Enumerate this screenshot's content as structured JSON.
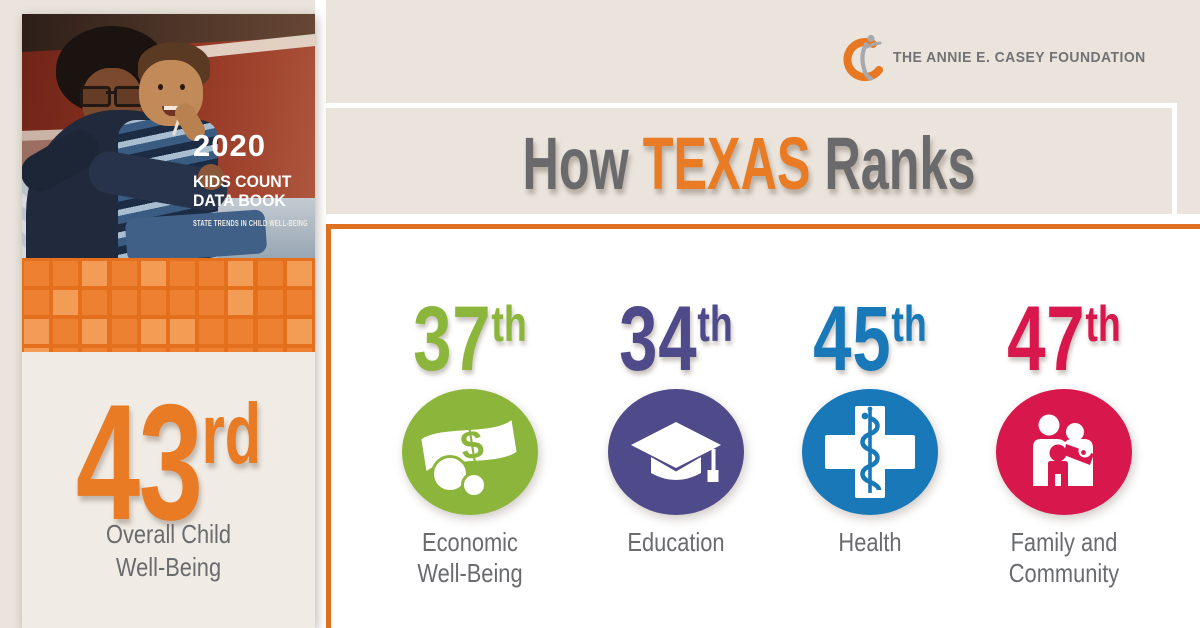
{
  "brand": {
    "name": "THE ANNIE E. CASEY FOUNDATION"
  },
  "title": {
    "word_before": "How",
    "state": "TEXAS",
    "word_after": "Ranks"
  },
  "book_cover": {
    "year": "2020",
    "title_line1": "KIDS COUNT",
    "title_line2": "DATA BOOK",
    "subtitle": "STATE TRENDS IN CHILD WELL-BEING"
  },
  "overall_rank": {
    "value": "43",
    "ordinal": "rd",
    "label_line1": "Overall Child",
    "label_line2": "Well-Being"
  },
  "categories": [
    {
      "rank": "37",
      "ordinal": "th",
      "label_line1": "Economic",
      "label_line2": "Well-Being",
      "color": "#8CB53C",
      "icon": "money-icon"
    },
    {
      "rank": "34",
      "ordinal": "th",
      "label_line1": "Education",
      "label_line2": "",
      "color": "#4F4B8A",
      "icon": "graduation-cap-icon"
    },
    {
      "rank": "45",
      "ordinal": "th",
      "label_line1": "Health",
      "label_line2": "",
      "color": "#1878B8",
      "icon": "medical-cross-icon"
    },
    {
      "rank": "47",
      "ordinal": "th",
      "label_line1": "Family and",
      "label_line2": "Community",
      "color": "#D8174D",
      "icon": "family-icon"
    }
  ],
  "colors": {
    "accent_orange": "#E87B24",
    "panel_border": "#DE7220",
    "text_gray": "#6A6B6E",
    "page_background": "#EAE4DC",
    "card_background": "#F0EBE4",
    "pattern_base": "#EE8131",
    "pattern_light": "#F29C55",
    "pattern_gap": "#E4701E",
    "logo_orange": "#E87722",
    "logo_gray": "#A7A9AC",
    "logo_text_gray": "#717275"
  },
  "chart_data": {
    "type": "table",
    "title": "How TEXAS Ranks",
    "subtitle": "2020 KIDS COUNT Data Book — State Trends in Child Well-Being",
    "categories": [
      "Overall Child Well-Being",
      "Economic Well-Being",
      "Education",
      "Health",
      "Family and Community"
    ],
    "values": [
      43,
      37,
      34,
      45,
      47
    ],
    "value_format": "ordinal rank among states (43rd, 37th, 34th, 45th, 47th)"
  }
}
